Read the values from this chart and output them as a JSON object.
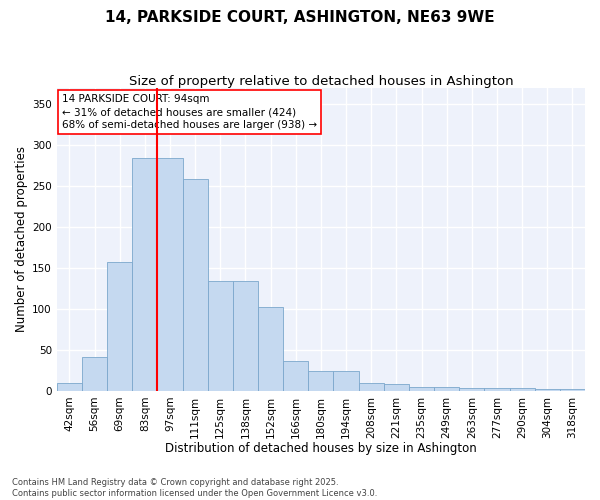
{
  "title": "14, PARKSIDE COURT, ASHINGTON, NE63 9WE",
  "subtitle": "Size of property relative to detached houses in Ashington",
  "xlabel": "Distribution of detached houses by size in Ashington",
  "ylabel": "Number of detached properties",
  "categories": [
    "42sqm",
    "56sqm",
    "69sqm",
    "83sqm",
    "97sqm",
    "111sqm",
    "125sqm",
    "138sqm",
    "152sqm",
    "166sqm",
    "180sqm",
    "194sqm",
    "208sqm",
    "221sqm",
    "235sqm",
    "249sqm",
    "263sqm",
    "277sqm",
    "290sqm",
    "304sqm",
    "318sqm"
  ],
  "values": [
    9,
    41,
    158,
    285,
    285,
    259,
    134,
    134,
    103,
    36,
    24,
    24,
    9,
    8,
    5,
    5,
    4,
    4,
    3,
    2,
    2
  ],
  "bar_color": "#c5d9f0",
  "bar_edge_color": "#7ba7cc",
  "vline_color": "red",
  "vline_x_index": 3.5,
  "annotation_text": "14 PARKSIDE COURT: 94sqm\n← 31% of detached houses are smaller (424)\n68% of semi-detached houses are larger (938) →",
  "annotation_box_color": "white",
  "annotation_box_edge_color": "red",
  "ylim": [
    0,
    370
  ],
  "yticks": [
    0,
    50,
    100,
    150,
    200,
    250,
    300,
    350
  ],
  "background_color": "#eef2fb",
  "grid_color": "white",
  "footnote": "Contains HM Land Registry data © Crown copyright and database right 2025.\nContains public sector information licensed under the Open Government Licence v3.0.",
  "title_fontsize": 11,
  "subtitle_fontsize": 9.5,
  "xlabel_fontsize": 8.5,
  "ylabel_fontsize": 8.5,
  "tick_fontsize": 7.5,
  "annotation_fontsize": 7.5,
  "footnote_fontsize": 6
}
